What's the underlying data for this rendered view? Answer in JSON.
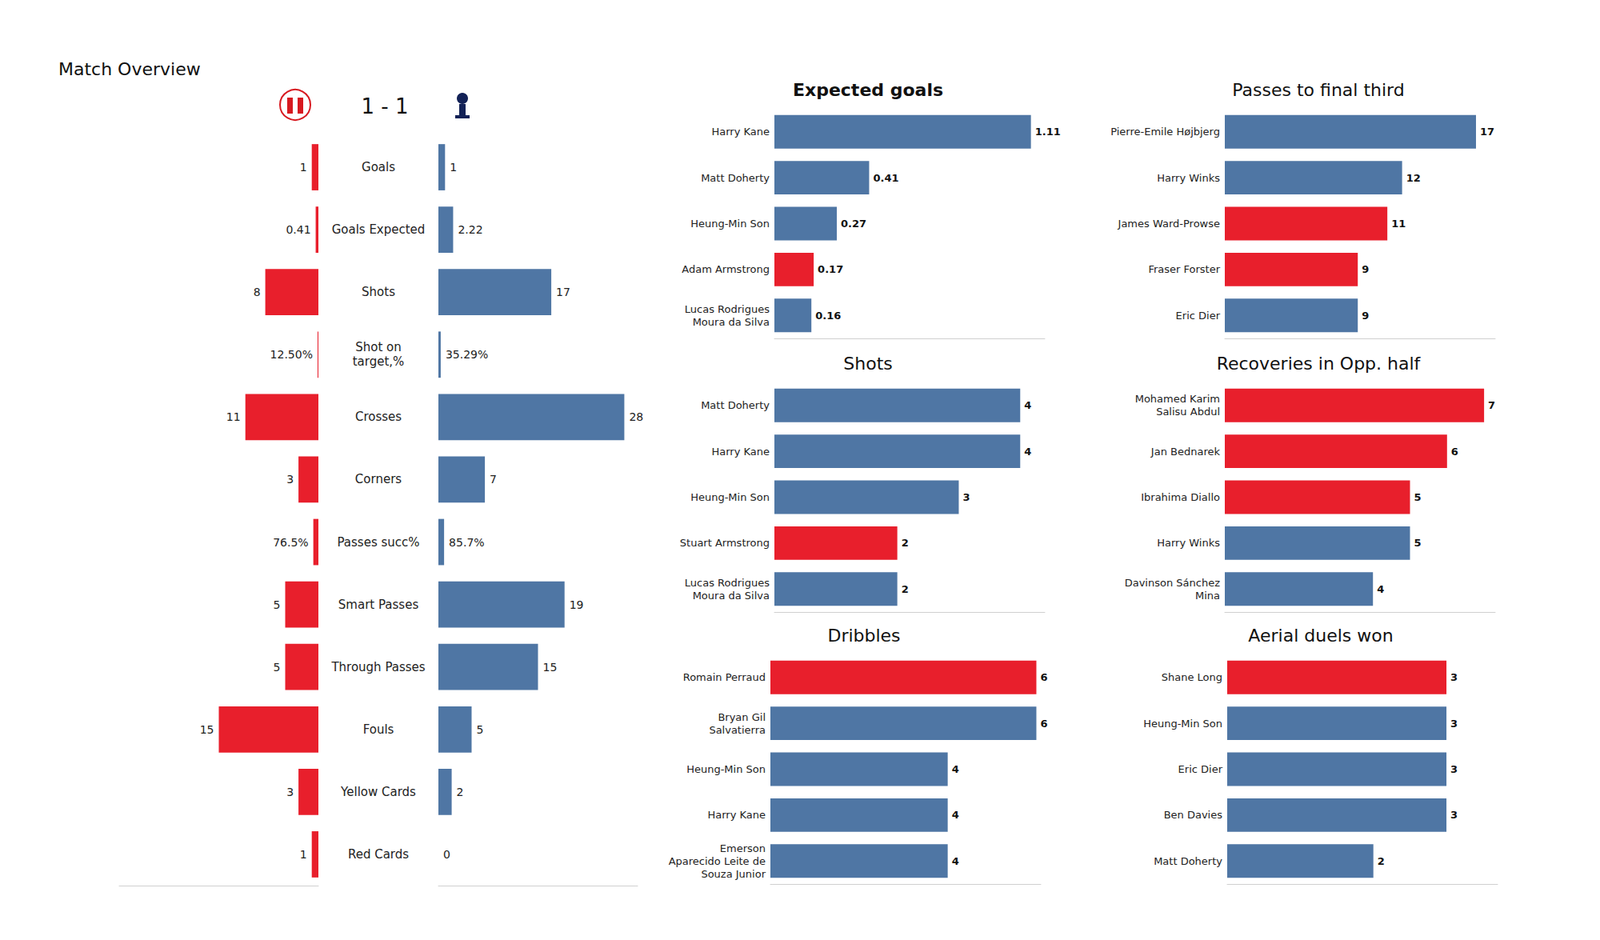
{
  "chart_data": [
    {
      "type": "bar",
      "title": "Match Overview",
      "annotations": [
        "1 - 1"
      ],
      "orientation": "horizontal",
      "categories": [
        "Goals",
        "Goals Expected",
        "Shots",
        "Shot on\ntarget,%",
        "Crosses",
        "Corners",
        "Passes succ%",
        "Smart Passes",
        "Through Passes",
        "Fouls",
        "Yellow Cards",
        "Red Cards"
      ],
      "series": [
        {
          "color": "#e81f2c",
          "values": [
            1,
            0.41,
            8,
            0.125,
            11,
            3,
            0.765,
            5,
            5,
            15,
            3,
            1
          ],
          "value_labels": [
            "1",
            "0.41",
            "8",
            "12.50%",
            "11",
            "3",
            "76.5%",
            "5",
            "5",
            "15",
            "3",
            "1"
          ]
        },
        {
          "color": "#4f76a4",
          "values": [
            1,
            2.22,
            17,
            0.3529,
            28,
            7,
            0.857,
            19,
            15,
            5,
            2,
            0
          ],
          "value_labels": [
            "1",
            "2.22",
            "17",
            "35.29%",
            "28",
            "7",
            "85.7%",
            "19",
            "15",
            "5",
            "2",
            "0"
          ]
        }
      ],
      "xlim": [
        0,
        30
      ],
      "data_labels": true,
      "tick_labels": "y"
    },
    {
      "type": "bar",
      "title": "Expected goals",
      "orientation": "horizontal",
      "categories": [
        "Harry Kane",
        "Matt Doherty",
        "Heung-Min Son",
        "Adam Armstrong",
        "Lucas Rodrigues\nMoura da Silva"
      ],
      "values": [
        1.11,
        0.41,
        0.27,
        0.17,
        0.16
      ],
      "colors": [
        "#4f76a4",
        "#4f76a4",
        "#4f76a4",
        "#e81f2c",
        "#4f76a4"
      ],
      "xlim": [
        0,
        1.17
      ],
      "data_labels": true,
      "tick_labels": "y"
    },
    {
      "type": "bar",
      "title": "Passes to final third",
      "orientation": "horizontal",
      "categories": [
        "Pierre-Emile Højbjerg",
        "Harry Winks",
        "James Ward-Prowse",
        "Fraser Forster",
        "Eric Dier"
      ],
      "values": [
        17,
        12,
        11,
        9,
        9
      ],
      "colors": [
        "#4f76a4",
        "#4f76a4",
        "#e81f2c",
        "#e81f2c",
        "#4f76a4"
      ],
      "xlim": [
        0,
        18.3
      ],
      "data_labels": true,
      "tick_labels": "y"
    },
    {
      "type": "bar",
      "title": "Shots",
      "orientation": "horizontal",
      "categories": [
        "Matt Doherty",
        "Harry Kane",
        "Heung-Min Son",
        "Stuart Armstrong",
        "Lucas Rodrigues\nMoura da Silva"
      ],
      "values": [
        4,
        4,
        3,
        2,
        2
      ],
      "colors": [
        "#4f76a4",
        "#4f76a4",
        "#4f76a4",
        "#e81f2c",
        "#4f76a4"
      ],
      "xlim": [
        0,
        4.4
      ],
      "data_labels": true,
      "tick_labels": "y"
    },
    {
      "type": "bar",
      "title": "Recoveries in Opp. half",
      "orientation": "horizontal",
      "categories": [
        "Mohamed Karim\nSalisu Abdul",
        "Jan Bednarek",
        "Ibrahima Diallo",
        "Harry Winks",
        "Davinson Sánchez\nMina"
      ],
      "values": [
        7,
        6,
        5,
        5,
        4
      ],
      "colors": [
        "#e81f2c",
        "#e81f2c",
        "#e81f2c",
        "#4f76a4",
        "#4f76a4"
      ],
      "xlim": [
        0,
        7.3
      ],
      "data_labels": true,
      "tick_labels": "y"
    },
    {
      "type": "bar",
      "title": "Dribbles",
      "orientation": "horizontal",
      "categories": [
        "Romain Perraud",
        "Bryan Gil\nSalvatierra",
        "Heung-Min Son",
        "Harry Kane",
        "Emerson\nAparecido Leite de\nSouza Junior"
      ],
      "values": [
        6,
        6,
        4,
        4,
        4
      ],
      "colors": [
        "#e81f2c",
        "#4f76a4",
        "#4f76a4",
        "#4f76a4",
        "#4f76a4"
      ],
      "xlim": [
        0,
        6.1
      ],
      "data_labels": true,
      "tick_labels": "y"
    },
    {
      "type": "bar",
      "title": "Aerial duels won",
      "orientation": "horizontal",
      "categories": [
        "Shane Long",
        "Heung-Min Son",
        "Eric Dier",
        "Ben Davies",
        "Matt Doherty"
      ],
      "values": [
        3,
        3,
        3,
        3,
        2
      ],
      "colors": [
        "#e81f2c",
        "#4f76a4",
        "#4f76a4",
        "#4f76a4",
        "#4f76a4"
      ],
      "xlim": [
        0,
        3.7
      ],
      "data_labels": true,
      "tick_labels": "y"
    }
  ]
}
